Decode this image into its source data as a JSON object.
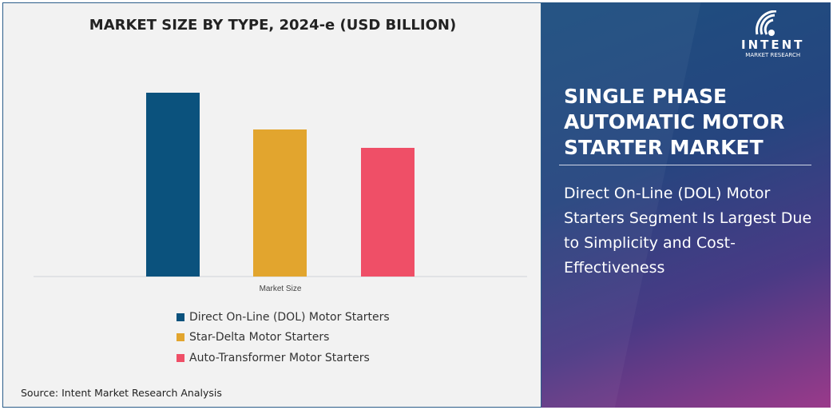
{
  "chart_data": {
    "type": "bar",
    "title": "MARKET SIZE BY TYPE, 2024-e (USD BILLION)",
    "categories": [
      "Market Size"
    ],
    "series": [
      {
        "name": "Direct On-Line (DOL) Motor Starters",
        "values": [
          1.0
        ],
        "color": "#0b527d"
      },
      {
        "name": "Star-Delta Motor Starters",
        "values": [
          0.8
        ],
        "color": "#e2a52e"
      },
      {
        "name": "Auto-Transformer Motor Starters",
        "values": [
          0.7
        ],
        "color": "#ef4f67"
      }
    ],
    "value_scale": "relative (no axis values printed)",
    "grid": false,
    "legend": "bottom"
  },
  "source": "Source: Intent Market Research Analysis",
  "panel": {
    "title": "SINGLE PHASE AUTOMATIC MOTOR STARTER MARKET",
    "subtitle": "Direct On-Line (DOL) Motor Starters Segment Is Largest Due to Simplicity and Cost-Effectiveness"
  },
  "logo": {
    "name": "INTENT",
    "tagline": "MARKET RESEARCH",
    "tm": "™"
  }
}
